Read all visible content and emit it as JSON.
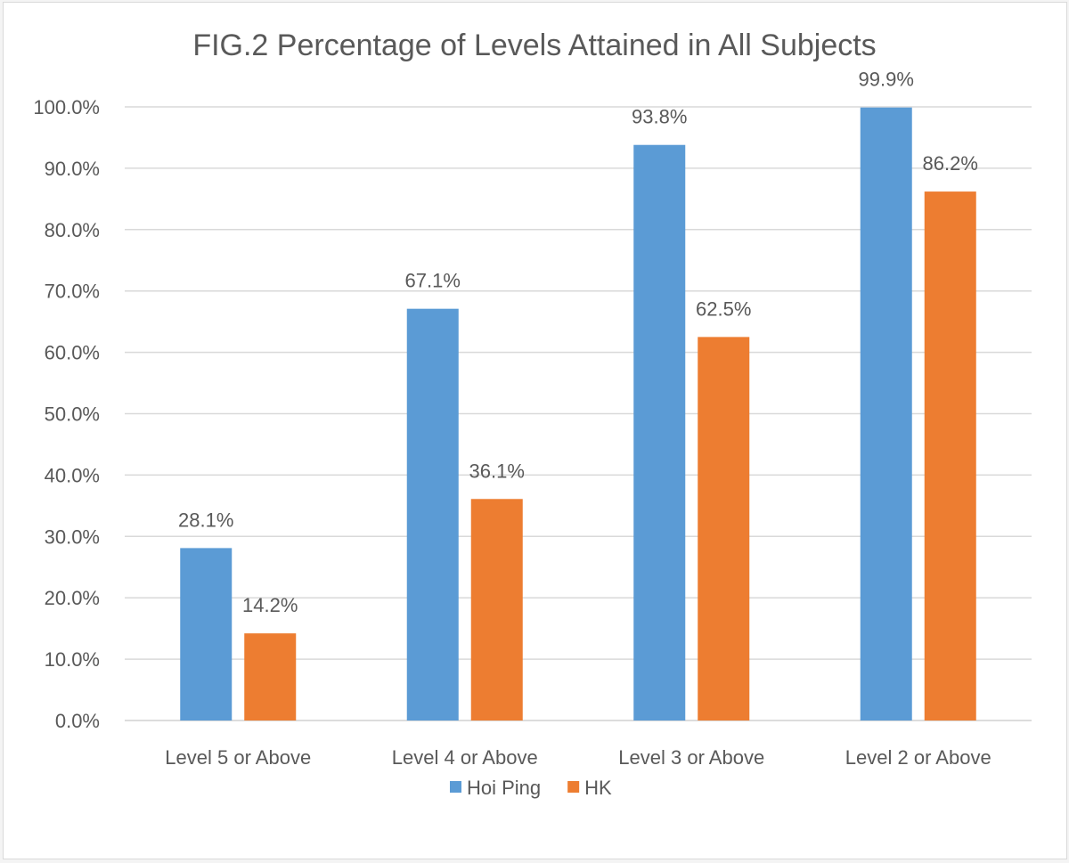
{
  "chart_data": {
    "type": "bar",
    "title": "FIG.2 Percentage of Levels Attained in All Subjects",
    "xlabel": "",
    "ylabel": "",
    "ylim": [
      0,
      100
    ],
    "yticks": [
      "0.0%",
      "10.0%",
      "20.0%",
      "30.0%",
      "40.0%",
      "50.0%",
      "60.0%",
      "70.0%",
      "80.0%",
      "90.0%",
      "100.0%"
    ],
    "categories": [
      "Level 5 or Above",
      "Level 4 or Above",
      "Level 3 or Above",
      "Level 2 or Above"
    ],
    "series": [
      {
        "name": "Hoi Ping",
        "color": "#5b9bd5",
        "values": [
          28.1,
          67.1,
          93.8,
          99.9
        ],
        "labels": [
          "28.1%",
          "67.1%",
          "93.8%",
          "99.9%"
        ]
      },
      {
        "name": "HK",
        "color": "#ed7d31",
        "values": [
          14.2,
          36.1,
          62.5,
          86.2
        ],
        "labels": [
          "14.2%",
          "36.1%",
          "62.5%",
          "86.2%"
        ]
      }
    ],
    "grid": true,
    "legend": "bottom-center"
  }
}
